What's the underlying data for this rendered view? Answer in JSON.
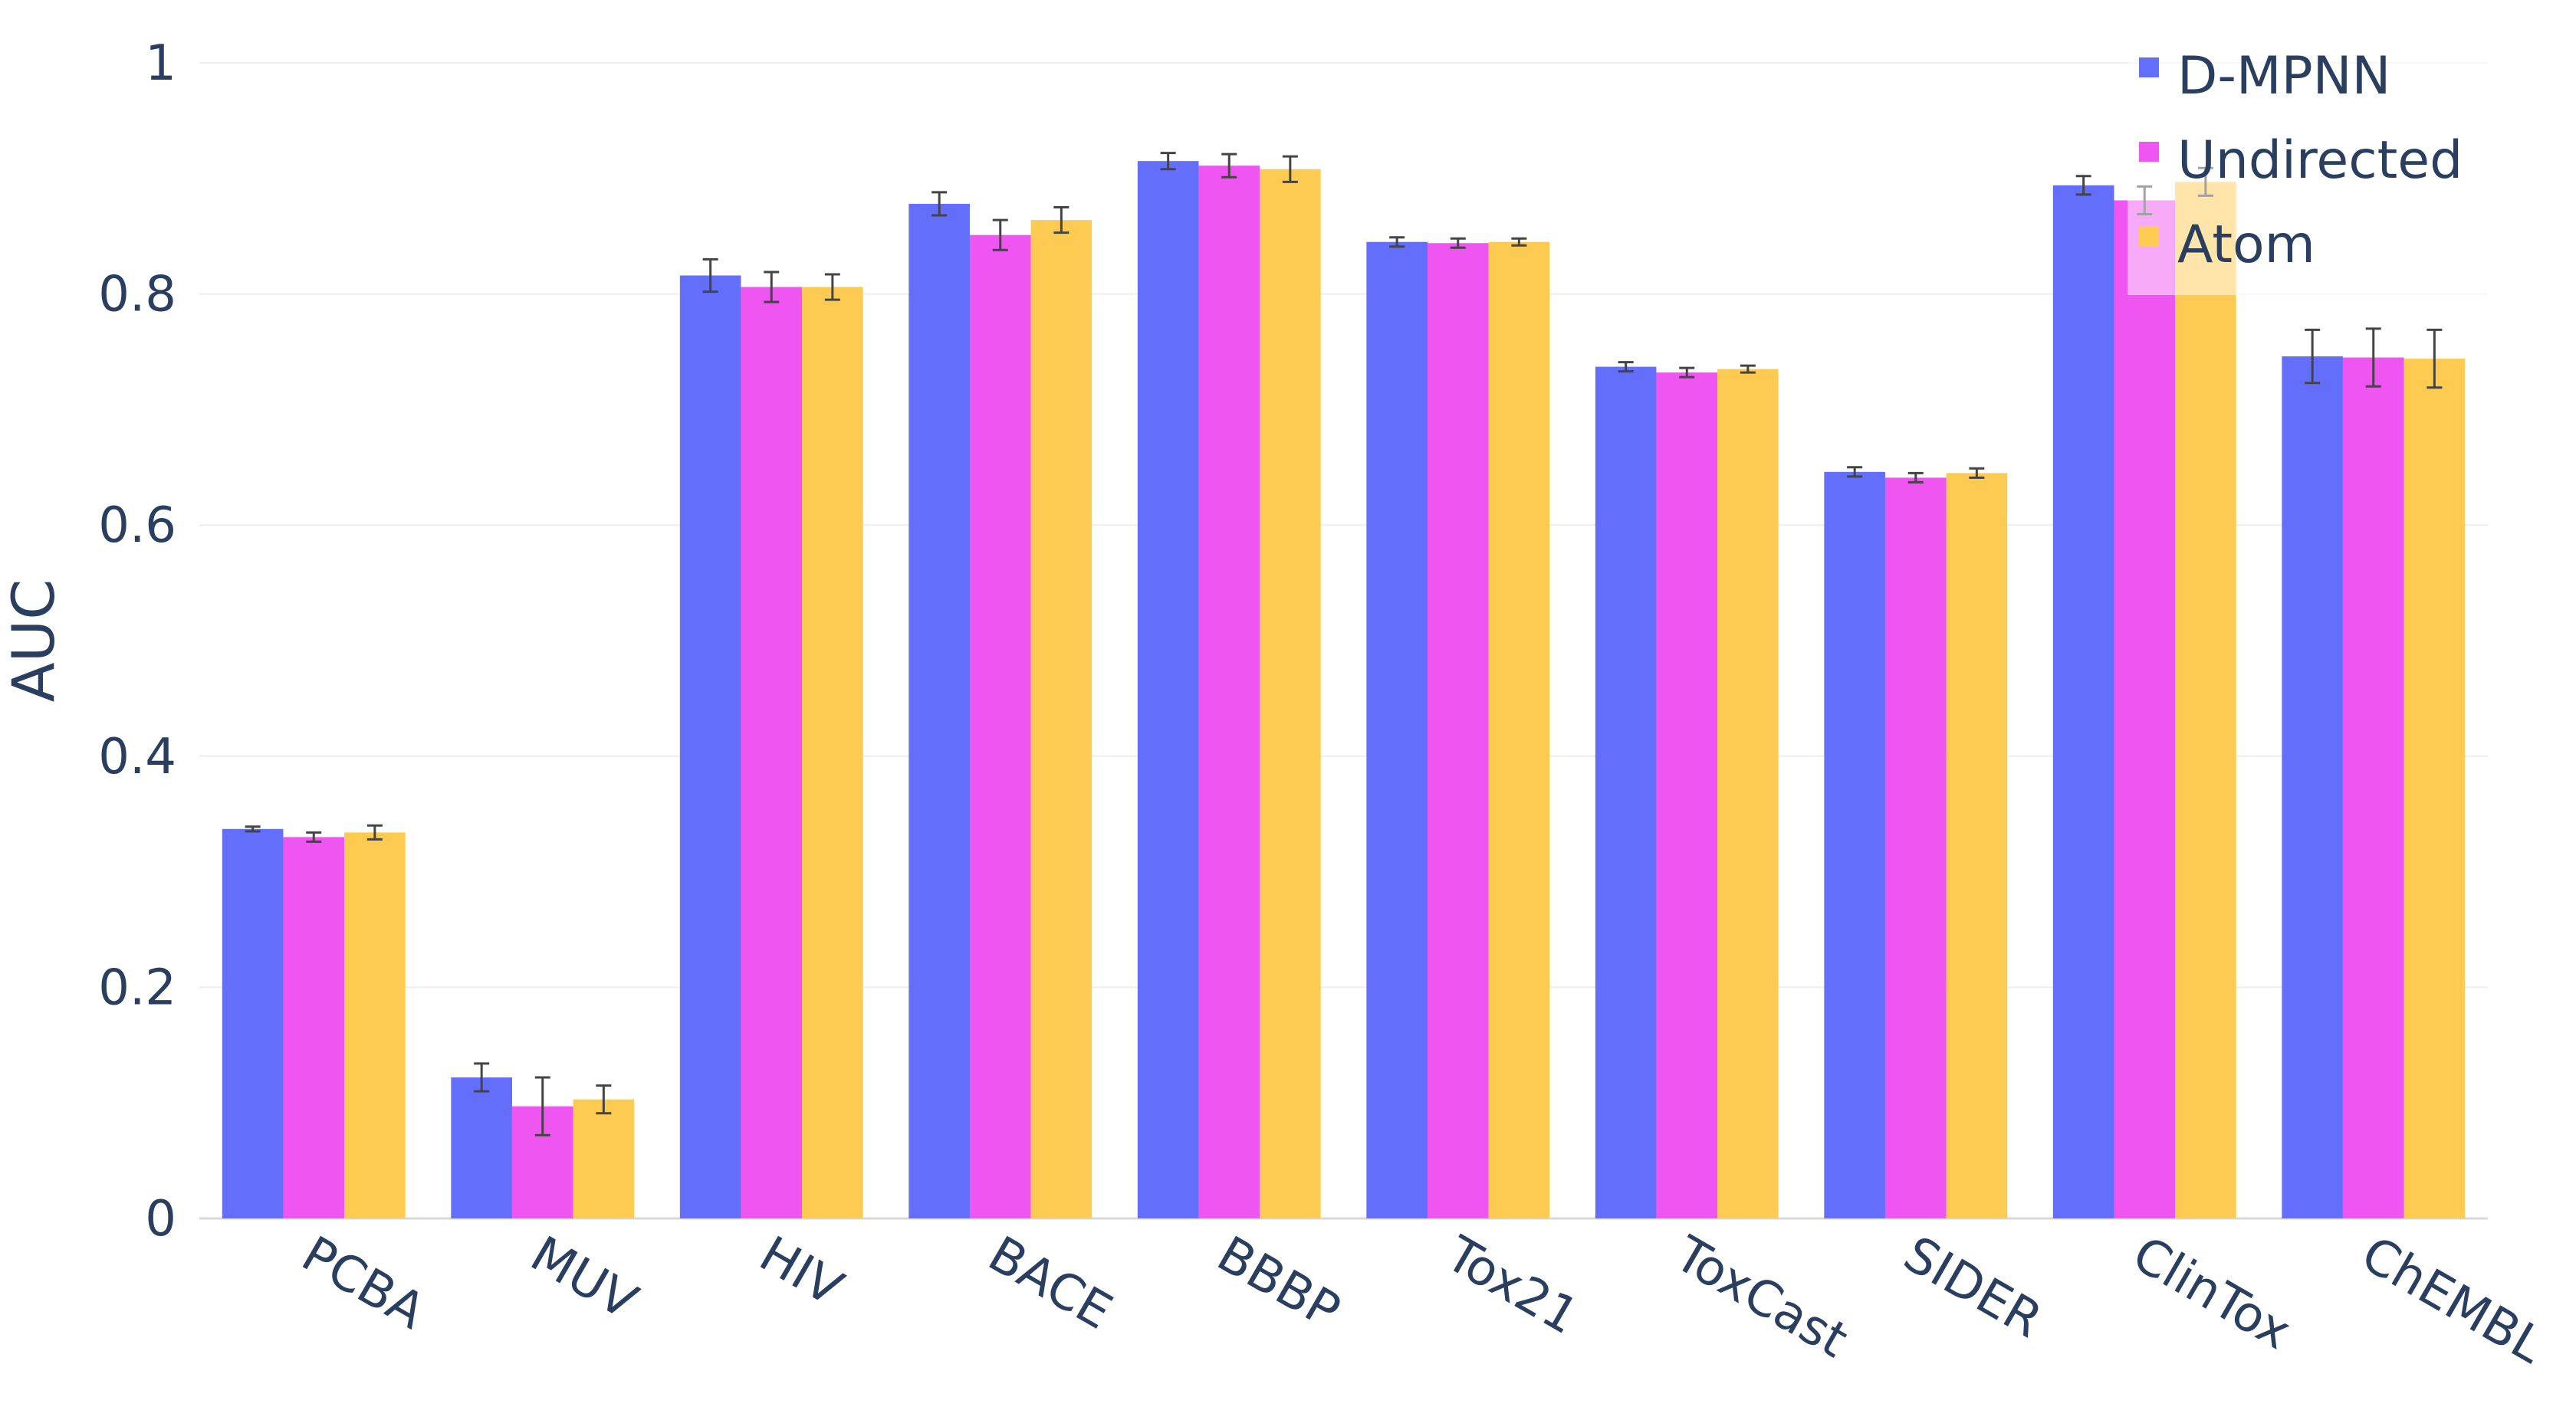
{
  "chart_data": {
    "type": "bar",
    "title": "",
    "xlabel": "",
    "ylabel": "AUC",
    "ylim": [
      0,
      1
    ],
    "yticks": [
      0,
      0.2,
      0.4,
      0.6,
      0.8,
      1
    ],
    "ytick_labels": [
      "0",
      "0.2",
      "0.4",
      "0.6",
      "0.8",
      "1"
    ],
    "grid": true,
    "legend_position": "top-right",
    "categories": [
      "PCBA",
      "MUV",
      "HIV",
      "BACE",
      "BBBP",
      "Tox21",
      "ToxCast",
      "SIDER",
      "ClinTox",
      "ChEMBL"
    ],
    "series": [
      {
        "name": "D-MPNN",
        "color": "#636efa",
        "values": [
          0.337,
          0.122,
          0.816,
          0.878,
          0.915,
          0.845,
          0.737,
          0.646,
          0.894,
          0.746
        ],
        "errors": [
          0.002,
          0.012,
          0.014,
          0.01,
          0.007,
          0.004,
          0.004,
          0.004,
          0.008,
          0.023
        ]
      },
      {
        "name": "Undirected",
        "color": "#ef55f1",
        "values": [
          0.33,
          0.097,
          0.806,
          0.851,
          0.911,
          0.844,
          0.732,
          0.641,
          0.881,
          0.745
        ],
        "errors": [
          0.004,
          0.025,
          0.013,
          0.013,
          0.01,
          0.004,
          0.004,
          0.004,
          0.012,
          0.025
        ]
      },
      {
        "name": "Atom",
        "color": "#fecb52",
        "values": [
          0.334,
          0.103,
          0.806,
          0.864,
          0.908,
          0.845,
          0.735,
          0.645,
          0.897,
          0.744
        ],
        "errors": [
          0.006,
          0.012,
          0.011,
          0.011,
          0.011,
          0.003,
          0.003,
          0.004,
          0.012,
          0.025
        ]
      }
    ]
  }
}
